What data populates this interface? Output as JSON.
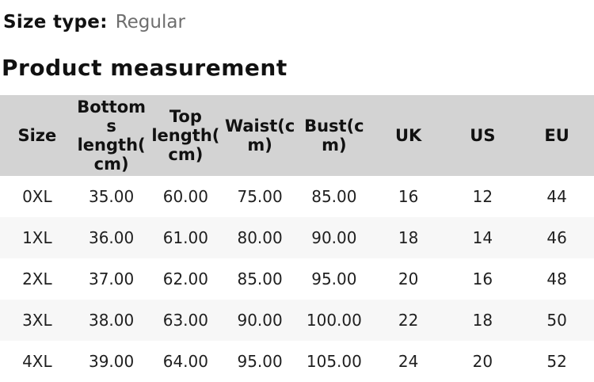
{
  "size_type": {
    "label": "Size type:",
    "value": "Regular"
  },
  "section_title": "Product measurement",
  "table": {
    "columns": [
      "Size",
      "Bottoms length(cm)",
      "Top length(cm)",
      "Waist(cm)",
      "Bust(cm)",
      "UK",
      "US",
      "EU"
    ],
    "rows": [
      [
        "0XL",
        "35.00",
        "60.00",
        "75.00",
        "85.00",
        "16",
        "12",
        "44"
      ],
      [
        "1XL",
        "36.00",
        "61.00",
        "80.00",
        "90.00",
        "18",
        "14",
        "46"
      ],
      [
        "2XL",
        "37.00",
        "62.00",
        "85.00",
        "95.00",
        "20",
        "16",
        "48"
      ],
      [
        "3XL",
        "38.00",
        "63.00",
        "90.00",
        "100.00",
        "22",
        "18",
        "50"
      ],
      [
        "4XL",
        "39.00",
        "64.00",
        "95.00",
        "105.00",
        "24",
        "20",
        "52"
      ]
    ]
  },
  "colors": {
    "header_bg": "#d3d3d3",
    "row_alt_bg": "#f7f7f7",
    "text": "#1f1f1f",
    "muted_text": "#6e6e6e",
    "scrollbar_thumb": "#3f3f3f"
  }
}
